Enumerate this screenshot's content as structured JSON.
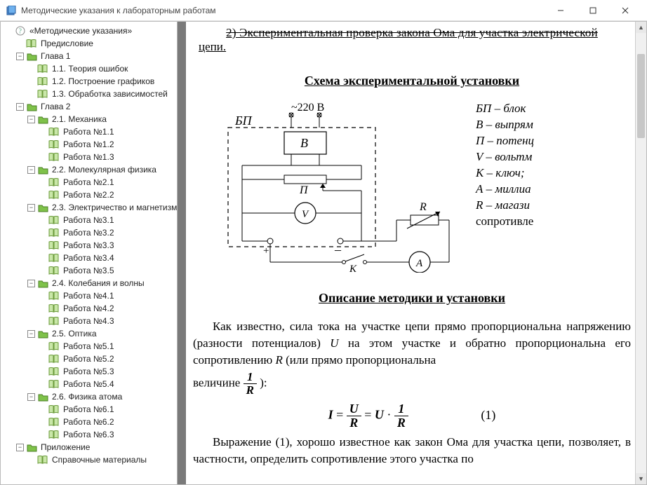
{
  "window": {
    "title": "Методические указания к лабораторным работам"
  },
  "tree": {
    "root": "«Методические указания»",
    "n_preface": "Предисловие",
    "ch1": "Глава 1",
    "ch1_1": "1.1. Теория ошибок",
    "ch1_2": "1.2. Построение графиков",
    "ch1_3": "1.3. Обработка зависимостей",
    "ch2": "Глава 2",
    "s21": "2.1. Механика",
    "w11": "Работа №1.1",
    "w12": "Работа №1.2",
    "w13": "Работа №1.3",
    "s22": "2.2. Молекулярная физика",
    "w21": "Работа №2.1",
    "w22": "Работа №2.2",
    "s23": "2.3. Электричество и магнетизм",
    "w31": "Работа №3.1",
    "w32": "Работа №3.2",
    "w33": "Работа №3.3",
    "w34": "Работа №3.4",
    "w35": "Работа №3.5",
    "s24": "2.4. Колебания и волны",
    "w41": "Работа №4.1",
    "w42": "Работа №4.2",
    "w43": "Работа №4.3",
    "s25": "2.5. Оптика",
    "w51": "Работа №5.1",
    "w52": "Работа №5.2",
    "w53": "Работа №5.3",
    "w54": "Работа №5.4",
    "s26": "2.6. Физика атома",
    "w61": "Работа №6.1",
    "w62": "Работа №6.2",
    "w63": "Работа №6.3",
    "appx": "Приложение",
    "refs": "Справочные материалы"
  },
  "doc": {
    "cut_line1": "2) Экспериментальная проверка закона Ома для участка электрической",
    "cut_line2": "цепи.",
    "heading_schema": "Схема экспериментальной установки",
    "heading_method": "Описание методики и установки",
    "diagram": {
      "v220": "~220 В",
      "BP": "БП",
      "B": "В",
      "P": "П",
      "V": "V",
      "K": "K",
      "A": "A",
      "R": "R",
      "plus": "+",
      "minus": "–"
    },
    "legend": {
      "l1a": "БП",
      "l1b": " – блок ",
      "l2a": "В",
      "l2b": " – выпрям",
      "l3a": "П",
      "l3b": " – потенц",
      "l4a": "V",
      "l4b": " – вольтм",
      "l5a": "К",
      "l5b": " – ключ;",
      "l6a": "А",
      "l6b": " – миллиа",
      "l7a": "R",
      "l7b": " – магази",
      "l8": "сопротивле"
    },
    "p1a": "Как известно, сила тока на участке цепи прямо пропорциональна напряжению (разности потенциалов) ",
    "p1U": "U",
    "p1b": " на этом участке и обратно пропорциональна его сопротивлению ",
    "p1R": "R",
    "p1c": " (или прямо пропорциональна",
    "p1d": "величине ",
    "p1e": "):",
    "eq": {
      "I": "I",
      "eq": " = ",
      "U": "U",
      "R": "R",
      "dot": " · ",
      "one": "1",
      "num": "(1)"
    },
    "p2": "Выражение (1), хорошо известное как закон Ома для участка цепи, позволяет, в частности, определить сопротивление этого участка по"
  },
  "colors": {
    "chrome_border": "#bbbbbb",
    "page_bg": "#ffffff",
    "content_bg": "#7a7a7a",
    "tree_text": "#222222",
    "icon_book_fill": "#c9e7a8",
    "icon_book_stroke": "#6a9a3a",
    "icon_folder_fill": "#7fc24a",
    "icon_folder_stroke": "#4a7d23",
    "icon_help_fill": "#ffffff",
    "icon_help_stroke": "#888888"
  }
}
